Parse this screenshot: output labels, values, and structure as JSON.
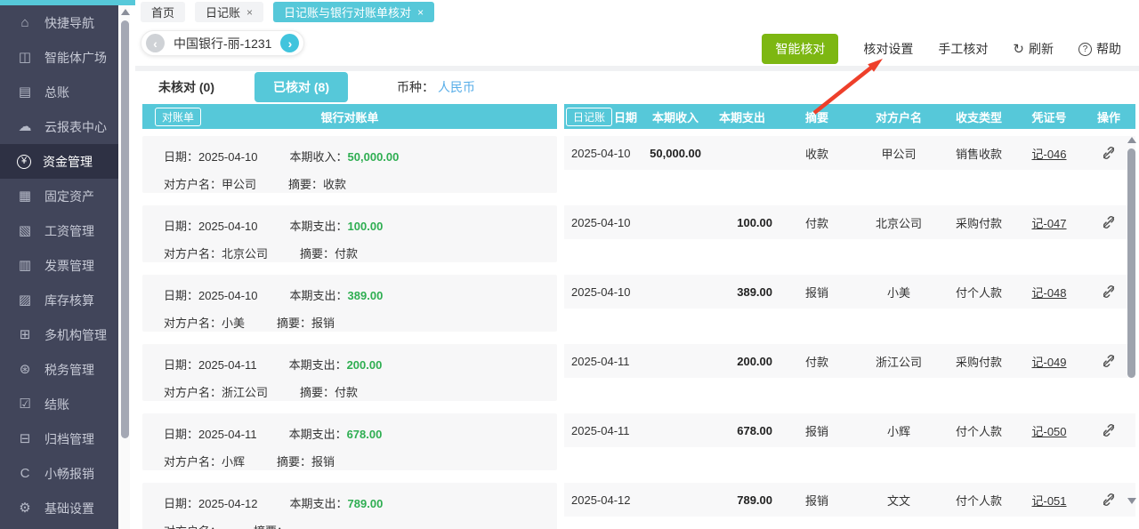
{
  "colors": {
    "accent_cyan": "#56c8d9",
    "green_button": "#7db712",
    "amount_green": "#2fae52",
    "arrow_red": "#ee3f2a",
    "sidebar_bg": "#41455a",
    "sidebar_active_bg": "#2e3144",
    "currency_link_blue": "#58aee8"
  },
  "sidebar": {
    "items": [
      {
        "name": "quick-nav",
        "icon": "⌂",
        "label": "快捷导航"
      },
      {
        "name": "agent-plaza",
        "icon": "◫",
        "label": "智能体广场"
      },
      {
        "name": "general-ledger",
        "icon": "▤",
        "label": "总账"
      },
      {
        "name": "cloud-reports",
        "icon": "☁",
        "label": "云报表中心"
      },
      {
        "name": "funds-management",
        "icon": "¥",
        "label": "资金管理",
        "active": true,
        "circle": true
      },
      {
        "name": "fixed-assets",
        "icon": "▦",
        "label": "固定资产"
      },
      {
        "name": "payroll",
        "icon": "▧",
        "label": "工资管理"
      },
      {
        "name": "invoice-management",
        "icon": "▥",
        "label": "发票管理"
      },
      {
        "name": "inventory",
        "icon": "▨",
        "label": "库存核算"
      },
      {
        "name": "multi-org",
        "icon": "⊞",
        "label": "多机构管理"
      },
      {
        "name": "tax-management",
        "icon": "⊛",
        "label": "税务管理"
      },
      {
        "name": "closing",
        "icon": "☑",
        "label": "结账"
      },
      {
        "name": "archive",
        "icon": "⊟",
        "label": "归档管理"
      },
      {
        "name": "xiaochang-expense",
        "icon": "C",
        "label": "小畅报销"
      },
      {
        "name": "basic-settings",
        "icon": "⚙",
        "label": "基础设置"
      }
    ]
  },
  "tabs": [
    {
      "label": "首页",
      "close": "",
      "active": false
    },
    {
      "label": "日记账",
      "close": "×",
      "active": false
    },
    {
      "label": "日记账与银行对账单核对",
      "close": "×",
      "active": true
    }
  ],
  "toolbar": {
    "bank_account": "中国银行-丽-1231",
    "prev_icon": "‹",
    "next_icon": "›",
    "smart_check": "智能核对",
    "check_settings": "核对设置",
    "manual_check": "手工核对",
    "refresh_icon": "↻",
    "refresh": "刷新",
    "help_icon": "?",
    "help": "帮助"
  },
  "filter": {
    "unchecked": "未核对 (0)",
    "checked": "已核对 (8)",
    "currency_label": "币种：",
    "currency": "人民币"
  },
  "left_panel": {
    "tag": "对账单",
    "title": "银行对账单",
    "labels": {
      "date": "日期：",
      "party": "对方户名：",
      "memo": "摘要："
    },
    "rows": [
      {
        "date": "2025-04-10",
        "amount_label": "本期收入：",
        "amount": "50,000.00",
        "party": "甲公司",
        "memo": "收款"
      },
      {
        "date": "2025-04-10",
        "amount_label": "本期支出：",
        "amount": "100.00",
        "party": "北京公司",
        "memo": "付款"
      },
      {
        "date": "2025-04-10",
        "amount_label": "本期支出：",
        "amount": "389.00",
        "party": "小美",
        "memo": "报销"
      },
      {
        "date": "2025-04-11",
        "amount_label": "本期支出：",
        "amount": "200.00",
        "party": "浙江公司",
        "memo": "付款"
      },
      {
        "date": "2025-04-11",
        "amount_label": "本期支出：",
        "amount": "678.00",
        "party": "小辉",
        "memo": "报销"
      },
      {
        "date": "2025-04-12",
        "amount_label": "本期支出：",
        "amount": "789.00",
        "party": "",
        "memo": ""
      }
    ]
  },
  "right_panel": {
    "tag": "日记账",
    "columns": [
      "日期",
      "本期收入",
      "本期支出",
      "摘要",
      "对方户名",
      "收支类型",
      "凭证号",
      "操作"
    ],
    "rows": [
      {
        "date": "2025-04-10",
        "income": "50,000.00",
        "expense": "",
        "summary": "收款",
        "party": "甲公司",
        "type": "销售收款",
        "voucher": "记-046"
      },
      {
        "date": "2025-04-10",
        "income": "",
        "expense": "100.00",
        "summary": "付款",
        "party": "北京公司",
        "type": "采购付款",
        "voucher": "记-047"
      },
      {
        "date": "2025-04-10",
        "income": "",
        "expense": "389.00",
        "summary": "报销",
        "party": "小美",
        "type": "付个人款",
        "voucher": "记-048"
      },
      {
        "date": "2025-04-11",
        "income": "",
        "expense": "200.00",
        "summary": "付款",
        "party": "浙江公司",
        "type": "采购付款",
        "voucher": "记-049"
      },
      {
        "date": "2025-04-11",
        "income": "",
        "expense": "678.00",
        "summary": "报销",
        "party": "小辉",
        "type": "付个人款",
        "voucher": "记-050"
      },
      {
        "date": "2025-04-12",
        "income": "",
        "expense": "789.00",
        "summary": "报销",
        "party": "文文",
        "type": "付个人款",
        "voucher": "记-051"
      }
    ]
  }
}
